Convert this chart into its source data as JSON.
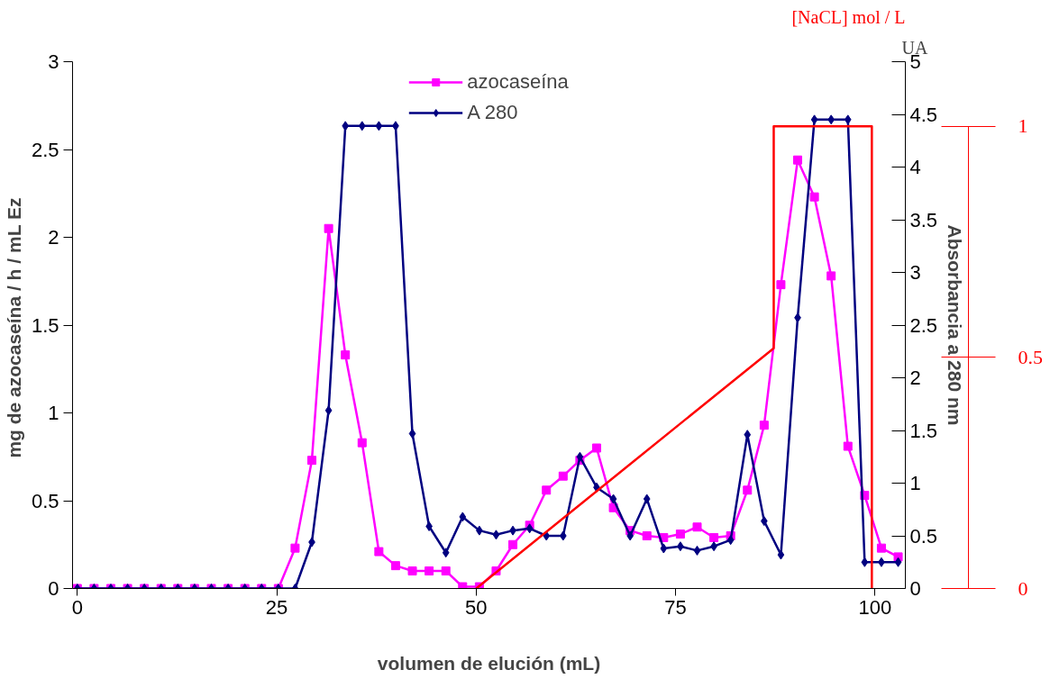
{
  "chart_data": {
    "type": "line",
    "xlabel": "volumen de elución (mL)",
    "ylabel": "mg de azocaseína / h / mL  Ez",
    "y2label": "Absorbancia a 280 nm",
    "y3label": "[NaCL] mol / L",
    "annotations": [
      "UA"
    ],
    "x": [
      0,
      2.1,
      4.2,
      6.3,
      8.4,
      10.5,
      12.6,
      14.7,
      16.8,
      18.9,
      21,
      23.1,
      25.2,
      27.3,
      29.4,
      31.5,
      33.6,
      35.7,
      37.8,
      39.9,
      42,
      44.1,
      46.2,
      48.3,
      50.4,
      52.5,
      54.6,
      56.7,
      58.8,
      60.9,
      63,
      65.1,
      67.2,
      69.3,
      71.4,
      73.5,
      75.6,
      77.7,
      79.8,
      81.9,
      84,
      86.1,
      88.2,
      90.3,
      92.4,
      94.5,
      96.6,
      98.7,
      100.8,
      102.9
    ],
    "series": [
      {
        "name": "azocaseína",
        "color": "#ff00ff",
        "marker": "square",
        "values": [
          0,
          0,
          0,
          0,
          0,
          0,
          0,
          0,
          0,
          0,
          0,
          0,
          0,
          0.23,
          0.73,
          2.05,
          1.33,
          0.83,
          0.21,
          0.13,
          0.1,
          0.1,
          0.1,
          0.01,
          0.01,
          0.1,
          0.25,
          0.36,
          0.56,
          0.64,
          0.73,
          0.8,
          0.46,
          0.33,
          0.3,
          0.29,
          0.31,
          0.35,
          0.29,
          0.3,
          0.56,
          0.93,
          1.73,
          2.44,
          2.23,
          1.78,
          0.81,
          0.53,
          0.23,
          0.18
        ]
      },
      {
        "name": "A 280",
        "color": "#000080",
        "marker": "diamond",
        "axis": "y2",
        "values": [
          0,
          0,
          0,
          0,
          0,
          0,
          0,
          0,
          0,
          0,
          0,
          0,
          0,
          0,
          0.44,
          1.69,
          4.39,
          4.39,
          4.39,
          4.39,
          1.47,
          0.59,
          0.34,
          0.68,
          0.55,
          0.51,
          0.55,
          0.57,
          0.5,
          0.5,
          1.25,
          0.96,
          0.85,
          0.5,
          0.85,
          0.38,
          0.4,
          0.36,
          0.4,
          0.46,
          1.46,
          0.64,
          0.32,
          2.57,
          4.45,
          4.45,
          4.45,
          0.25,
          0.25,
          0.25
        ]
      },
      {
        "color": "#ff0000",
        "marker": "none",
        "axis": "y3",
        "x": [
          50,
          87.3,
          87.3,
          99.6,
          99.6
        ],
        "values": [
          0,
          0.52,
          1,
          1,
          0
        ]
      }
    ],
    "xlim": [
      -0.6,
      103.8
    ],
    "xticks": [
      0,
      25,
      50,
      75,
      100
    ],
    "ylim": [
      0,
      3
    ],
    "yticks": [
      0,
      0.5,
      1,
      1.5,
      2,
      2.5,
      3
    ],
    "y2lim": [
      0,
      5
    ],
    "y2ticks": [
      0,
      0.5,
      1,
      1.5,
      2,
      2.5,
      3,
      3.5,
      4,
      4.5,
      5
    ],
    "y3lim": [
      0,
      1.14
    ],
    "y3ticks": [
      0,
      0.5,
      1
    ],
    "legend": "top",
    "grid": false,
    "line_style": "solid"
  }
}
